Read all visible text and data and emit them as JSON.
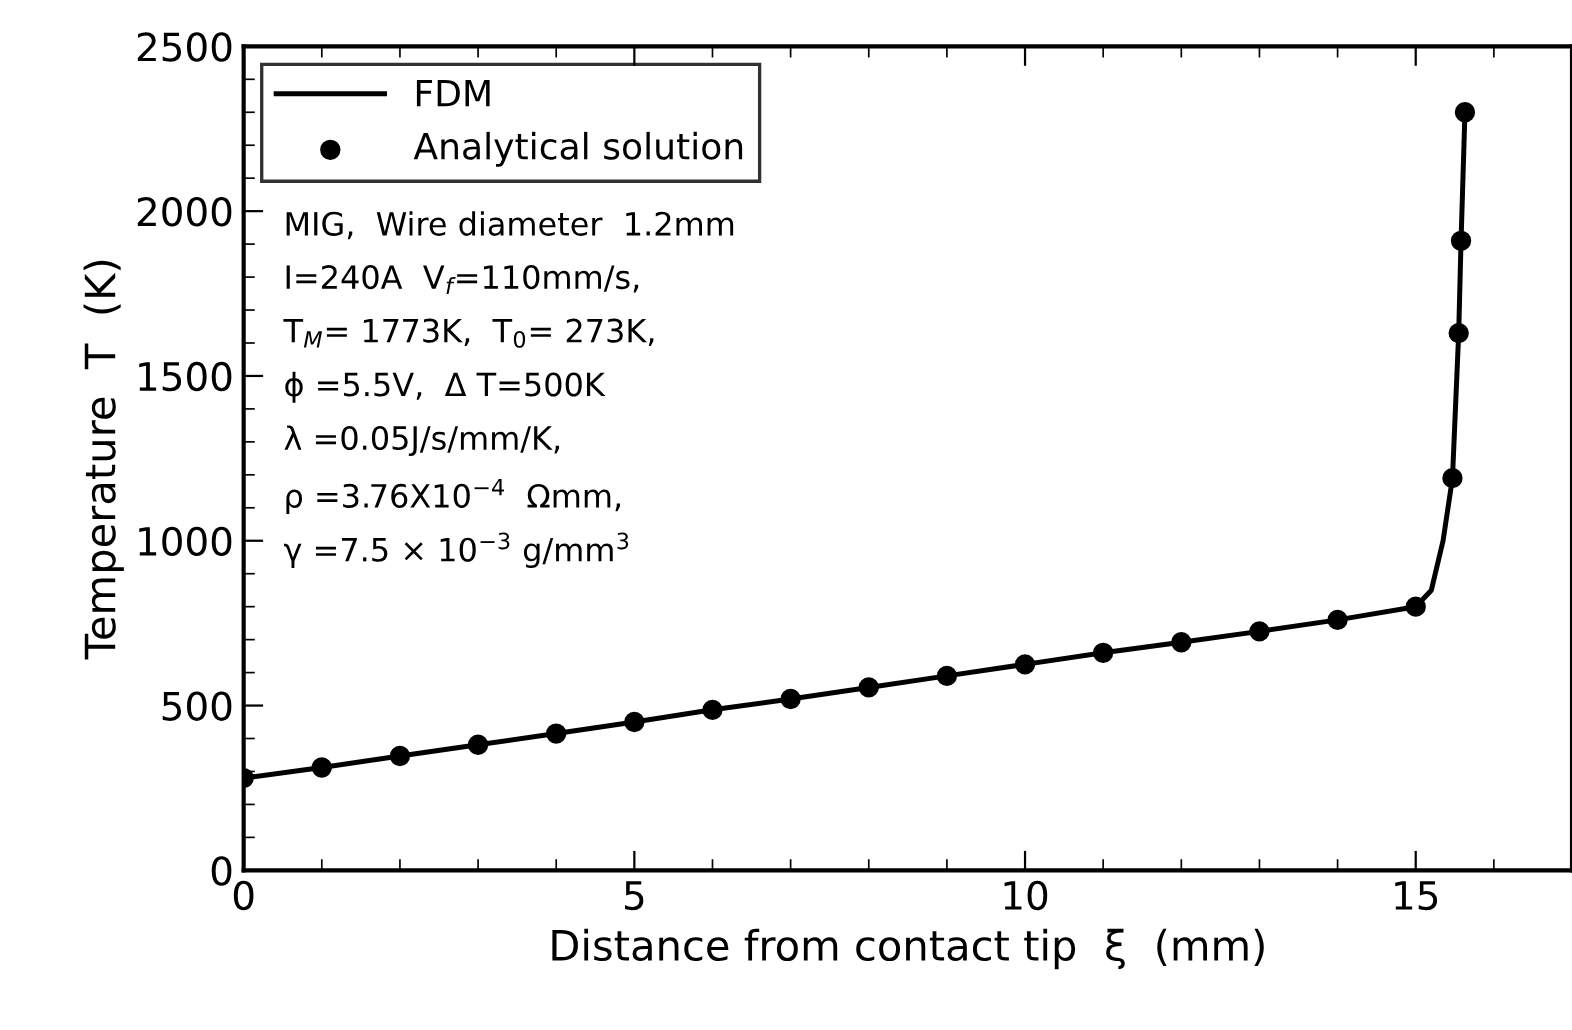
{
  "chart_data": {
    "type": "line",
    "xlabel": "Distance from contact tip  ξ  (mm)",
    "ylabel": "Temperature  T  (K)",
    "xlim": [
      0,
      17
    ],
    "xticks": [
      0,
      5,
      10,
      15
    ],
    "ylim": [
      0,
      2500
    ],
    "yticks": [
      0,
      500,
      1000,
      1500,
      2000,
      2500
    ],
    "legend": "top left",
    "series": [
      {
        "name": "FDM",
        "color": "#000000",
        "marker": "none",
        "line_style": "solid",
        "x": [
          0,
          1,
          2,
          3,
          4,
          5,
          6,
          7,
          8,
          9,
          10,
          11,
          12,
          13,
          14,
          15,
          15.2,
          15.35,
          15.47,
          15.55,
          15.58,
          15.63
        ],
        "values": [
          280,
          312,
          347,
          381,
          415,
          450,
          487,
          520,
          555,
          590,
          625,
          660,
          692,
          725,
          760,
          800,
          850,
          1000,
          1190,
          1630,
          1910,
          2300
        ]
      },
      {
        "name": "Analytical solution",
        "type": "scatter",
        "color": "#000000",
        "marker": "circle",
        "x": [
          0,
          1,
          2,
          3,
          4,
          5,
          6,
          7,
          8,
          9,
          10,
          11,
          12,
          13,
          14,
          15,
          15.47,
          15.55,
          15.58,
          15.63
        ],
        "values": [
          280,
          312,
          347,
          381,
          415,
          450,
          487,
          520,
          555,
          590,
          625,
          660,
          692,
          725,
          760,
          800,
          1190,
          1630,
          1910,
          2300
        ]
      }
    ],
    "annotations": [
      "MIG,  Wire diameter  1.2mm",
      "I=240A  V$_{f}$=110mm/s,",
      "T$_{M}$= 1773K,  T$_{0}$= 273K,",
      "ϕ =5.5V,  Δ T=500K",
      "λ =0.05J/s/mm/K,",
      "ρ =3.76X10$^{−4}$  Ωmm,",
      "γ =7.5 × 10$^{−3}$ g/mm$^{3}$"
    ]
  }
}
